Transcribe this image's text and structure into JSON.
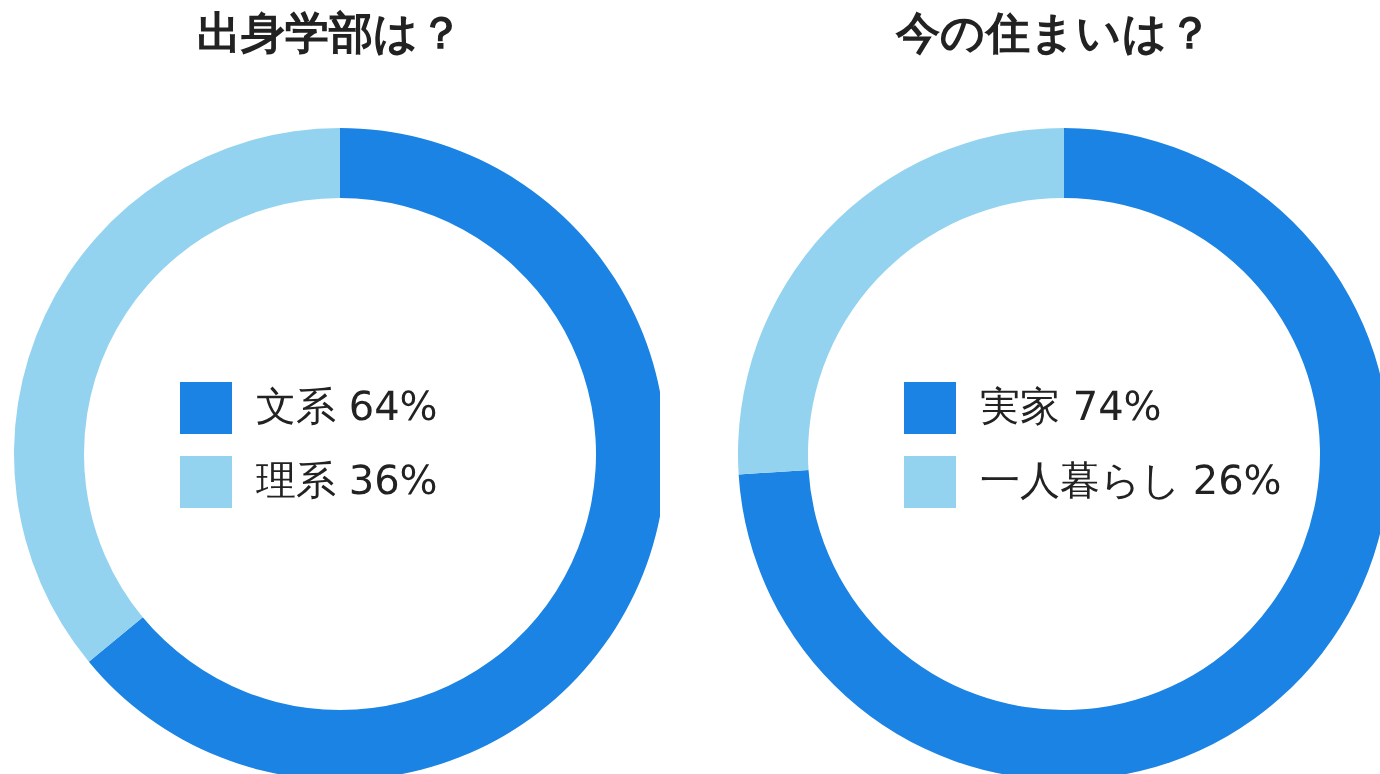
{
  "chart_data": [
    {
      "type": "donut",
      "title": "出身学部は？",
      "categories": [
        "文系",
        "理系"
      ],
      "values": [
        64,
        36
      ],
      "colors": [
        "#1a83e3",
        "#93d3f0"
      ],
      "value_labels": [
        "64%",
        "36%"
      ],
      "legend": "center"
    },
    {
      "type": "donut",
      "title": "今の住まいは？",
      "categories": [
        "実家",
        "一人暮らし"
      ],
      "values": [
        74,
        26
      ],
      "colors": [
        "#1a83e3",
        "#93d3f0"
      ],
      "value_labels": [
        "74%",
        "26%"
      ],
      "legend": "center"
    }
  ]
}
